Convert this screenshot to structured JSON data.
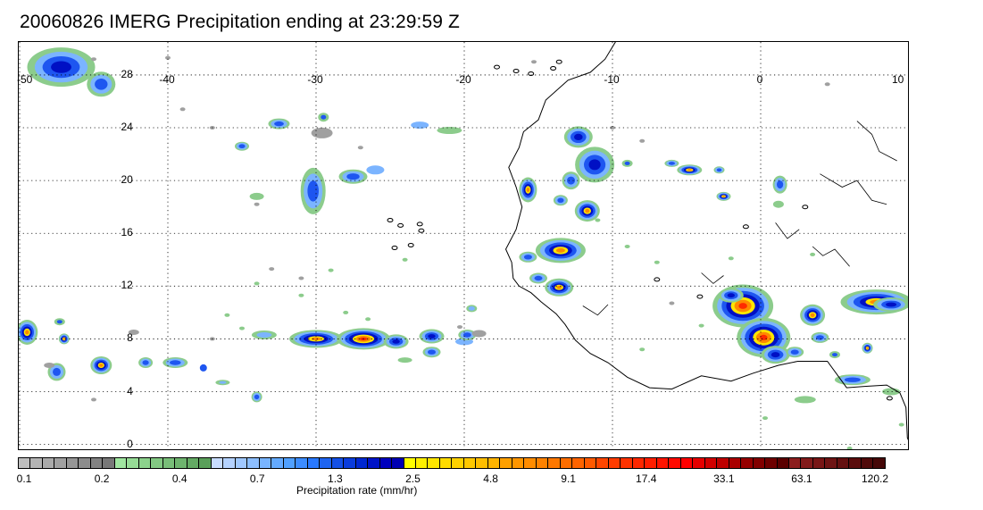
{
  "title": "20060826 IMERG Precipitation ending at 23:29:59 Z",
  "map": {
    "lon_range": [
      -50,
      10
    ],
    "lat_range": [
      -0.5,
      30.5
    ],
    "lon_ticks": [
      "-50",
      "-40",
      "-30",
      "-20",
      "-10",
      "0",
      "10"
    ],
    "lat_ticks": [
      "28",
      "24",
      "20",
      "16",
      "12",
      "8",
      "4",
      "0"
    ],
    "gridlines": "dotted"
  },
  "colorbar": {
    "label": "Precipitation rate (mm/hr)",
    "tick_labels": [
      "0.1",
      "0.2",
      "0.4",
      "0.7",
      "1.3",
      "2.5",
      "4.8",
      "9.1",
      "17.4",
      "33.1",
      "63.1",
      "120.2"
    ],
    "colors": [
      "#bebebe",
      "#b4b4b4",
      "#aaaaaa",
      "#a0a0a0",
      "#969696",
      "#8c8c8c",
      "#828282",
      "#787878",
      "#a0e6a0",
      "#96dc96",
      "#8cd28c",
      "#82c882",
      "#78be78",
      "#6eb46e",
      "#64aa64",
      "#5aa05a",
      "#c8dcff",
      "#b4d2ff",
      "#a0c8ff",
      "#8cbeff",
      "#78b4ff",
      "#64aaff",
      "#50a0ff",
      "#3c8cff",
      "#2878ff",
      "#1e64f0",
      "#1450e6",
      "#0a3cdc",
      "#0028d2",
      "#0014c8",
      "#0000be",
      "#0000b4",
      "#ffff00",
      "#fff000",
      "#ffe600",
      "#ffdc00",
      "#ffd200",
      "#ffc800",
      "#ffbe00",
      "#ffb400",
      "#ffa000",
      "#ff9600",
      "#ff8c00",
      "#ff8200",
      "#ff7800",
      "#ff6e00",
      "#ff6400",
      "#ff5a00",
      "#ff4600",
      "#ff3c00",
      "#ff3200",
      "#ff2800",
      "#ff1e00",
      "#ff1400",
      "#ff0a00",
      "#ff0000",
      "#e60000",
      "#d20000",
      "#be0000",
      "#aa0000",
      "#960000",
      "#820000",
      "#6e0000",
      "#5a0000",
      "#8c1e1e",
      "#821a1a",
      "#781616",
      "#6e1414",
      "#641010",
      "#5a0c0c",
      "#500a0a",
      "#460808"
    ]
  }
}
